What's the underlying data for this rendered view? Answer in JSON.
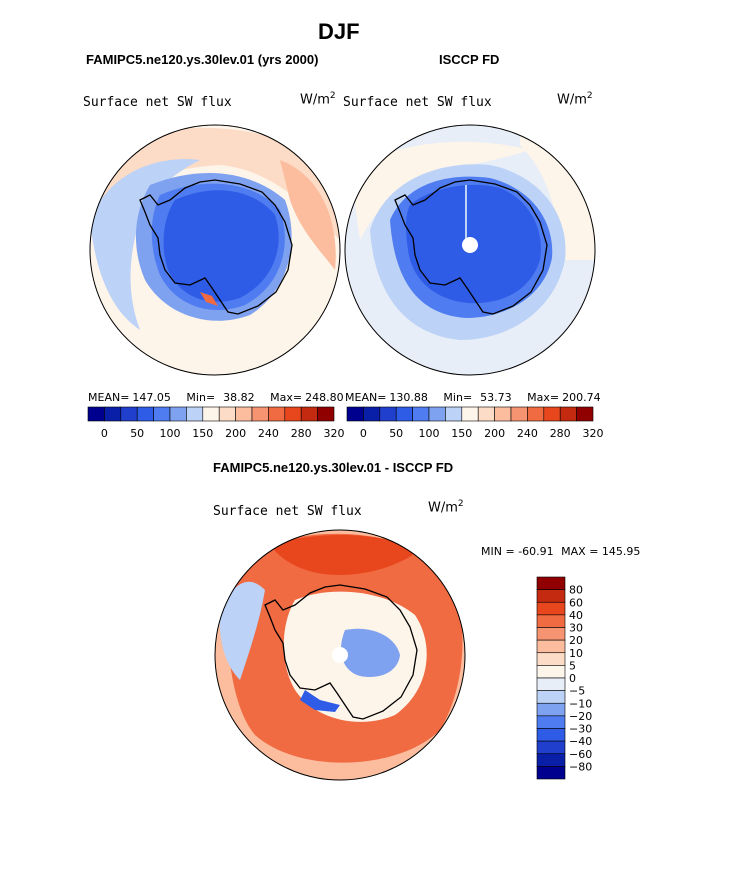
{
  "figure": {
    "title": "DJF",
    "units_label": "W/m",
    "units_exp": "2"
  },
  "chart_data": [
    {
      "type": "heatmap",
      "projection": "south polar stereographic",
      "subtitle": "FAMIPC5.ne120.ys.30lev.01 (yrs 2000)",
      "variable": "Surface net SW flux",
      "units": "W/m2",
      "stats": {
        "mean_label": "MEAN=",
        "mean": "147.05",
        "min_label": "Min=",
        "min": "38.82",
        "max_label": "Max=",
        "max": "248.80"
      },
      "colorbar": {
        "levels": [
          0,
          25,
          50,
          75,
          100,
          125,
          150,
          175,
          200,
          220,
          240,
          260,
          280,
          300,
          320
        ],
        "tick_labels": [
          "0",
          "50",
          "100",
          "150",
          "200",
          "240",
          "280",
          "320"
        ]
      }
    },
    {
      "type": "heatmap",
      "projection": "south polar stereographic",
      "subtitle": "ISCCP FD",
      "variable": "Surface net SW flux",
      "units": "W/m2",
      "stats": {
        "mean_label": "MEAN=",
        "mean": "130.88",
        "min_label": "Min=",
        "min": "53.73",
        "max_label": "Max=",
        "max": "200.74"
      },
      "colorbar": {
        "levels": [
          0,
          25,
          50,
          75,
          100,
          125,
          150,
          175,
          200,
          220,
          240,
          260,
          280,
          300,
          320
        ],
        "tick_labels": [
          "0",
          "50",
          "100",
          "150",
          "200",
          "240",
          "280",
          "320"
        ]
      }
    },
    {
      "type": "heatmap",
      "projection": "south polar stereographic",
      "subtitle": "FAMIPC5.ne120.ys.30lev.01 - ISCCP FD",
      "variable": "Surface net SW flux",
      "units": "W/m2",
      "stats": {
        "min_label": "MIN =",
        "min": "-60.91",
        "max_label": "MAX =",
        "max": "145.95"
      },
      "colorbar": {
        "orientation": "vertical",
        "levels": [
          -80,
          -60,
          -40,
          -30,
          -20,
          -10,
          -5,
          0,
          5,
          10,
          20,
          30,
          40,
          60,
          80
        ],
        "tick_labels": [
          "80",
          "60",
          "40",
          "30",
          "20",
          "10",
          "5",
          "0",
          "−5",
          "−10",
          "−20",
          "−30",
          "−40",
          "−60",
          "−80"
        ]
      }
    }
  ],
  "colors": {
    "scale": [
      "#00008f",
      "#0a1fa8",
      "#1f3fcc",
      "#2f5ce6",
      "#4f7cf0",
      "#7fa2f0",
      "#bcd2f6",
      "#fdf4ea",
      "#fcdcc6",
      "#fbbd9e",
      "#f69471",
      "#f06a42",
      "#e8461c",
      "#c42a0f",
      "#900000"
    ],
    "diverging": [
      "#00008f",
      "#0a1fa8",
      "#1f3fcc",
      "#2f5ce6",
      "#4f7cf0",
      "#7fa2f0",
      "#bcd2f6",
      "#e8eef8",
      "#fdf4ea",
      "#fcdcc6",
      "#fbbd9e",
      "#f69471",
      "#f06a42",
      "#e8461c",
      "#c42a0f",
      "#900000"
    ]
  }
}
